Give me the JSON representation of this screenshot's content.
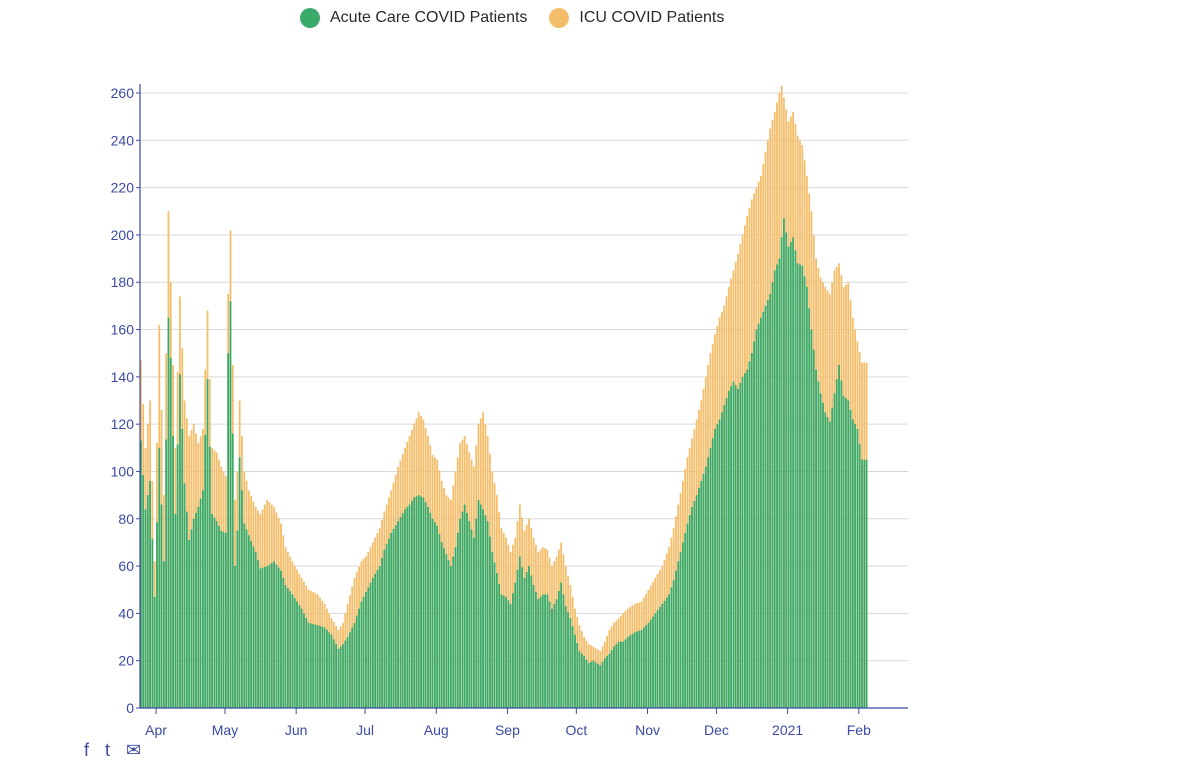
{
  "chart_data": {
    "type": "bar",
    "stacked": true,
    "title": "",
    "xlabel": "",
    "ylabel": "",
    "ylim": [
      0,
      265
    ],
    "yticks": [
      0,
      20,
      40,
      60,
      80,
      100,
      120,
      140,
      160,
      180,
      200,
      220,
      240,
      260
    ],
    "x_tick_labels": [
      {
        "label": "Apr",
        "day": 7
      },
      {
        "label": "May",
        "day": 37
      },
      {
        "label": "Jun",
        "day": 68
      },
      {
        "label": "Jul",
        "day": 98
      },
      {
        "label": "Aug",
        "day": 129
      },
      {
        "label": "Sep",
        "day": 160
      },
      {
        "label": "Oct",
        "day": 190
      },
      {
        "label": "Nov",
        "day": 221
      },
      {
        "label": "Dec",
        "day": 251
      },
      {
        "label": "2021",
        "day": 282
      },
      {
        "label": "Feb",
        "day": 313
      }
    ],
    "total_days": 317,
    "day_index_note": "day 0 = Mar 25, 2020",
    "series": [
      {
        "name": "Acute Care COVID Patients",
        "color": "#3aaa6a",
        "points": [
          [
            0,
            113
          ],
          [
            2,
            84
          ],
          [
            4,
            96
          ],
          [
            6,
            47
          ],
          [
            8,
            110
          ],
          [
            10,
            62
          ],
          [
            12,
            165
          ],
          [
            13,
            148
          ],
          [
            15,
            82
          ],
          [
            17,
            141
          ],
          [
            19,
            95
          ],
          [
            21,
            71
          ],
          [
            23,
            80
          ],
          [
            25,
            85
          ],
          [
            27,
            92
          ],
          [
            29,
            139
          ],
          [
            31,
            82
          ],
          [
            33,
            79
          ],
          [
            35,
            75
          ],
          [
            37,
            74
          ],
          [
            38,
            150
          ],
          [
            39,
            172
          ],
          [
            41,
            60
          ],
          [
            42,
            75
          ],
          [
            43,
            106
          ],
          [
            45,
            78
          ],
          [
            47,
            73
          ],
          [
            50,
            66
          ],
          [
            52,
            59
          ],
          [
            55,
            60
          ],
          [
            58,
            62
          ],
          [
            61,
            58
          ],
          [
            63,
            52
          ],
          [
            66,
            48
          ],
          [
            70,
            42
          ],
          [
            73,
            36
          ],
          [
            77,
            35
          ],
          [
            80,
            34
          ],
          [
            83,
            31
          ],
          [
            86,
            25
          ],
          [
            88,
            27
          ],
          [
            90,
            30
          ],
          [
            93,
            36
          ],
          [
            96,
            45
          ],
          [
            98,
            49
          ],
          [
            101,
            55
          ],
          [
            104,
            60
          ],
          [
            106,
            67
          ],
          [
            109,
            74
          ],
          [
            112,
            79
          ],
          [
            115,
            84
          ],
          [
            117,
            86
          ],
          [
            119,
            89
          ],
          [
            121,
            90
          ],
          [
            123,
            89
          ],
          [
            125,
            85
          ],
          [
            127,
            80
          ],
          [
            129,
            77
          ],
          [
            131,
            70
          ],
          [
            133,
            65
          ],
          [
            135,
            60
          ],
          [
            137,
            68
          ],
          [
            139,
            80
          ],
          [
            141,
            86
          ],
          [
            143,
            79
          ],
          [
            145,
            72
          ],
          [
            147,
            88
          ],
          [
            149,
            84
          ],
          [
            151,
            79
          ],
          [
            153,
            66
          ],
          [
            155,
            57
          ],
          [
            157,
            48
          ],
          [
            159,
            47
          ],
          [
            161,
            44
          ],
          [
            163,
            53
          ],
          [
            165,
            64
          ],
          [
            167,
            55
          ],
          [
            169,
            60
          ],
          [
            171,
            52
          ],
          [
            173,
            46
          ],
          [
            175,
            48
          ],
          [
            177,
            48
          ],
          [
            179,
            42
          ],
          [
            181,
            46
          ],
          [
            183,
            53
          ],
          [
            185,
            43
          ],
          [
            187,
            38
          ],
          [
            189,
            31
          ],
          [
            191,
            24
          ],
          [
            193,
            22
          ],
          [
            195,
            19
          ],
          [
            197,
            20
          ],
          [
            200,
            18
          ],
          [
            202,
            21
          ],
          [
            204,
            23
          ],
          [
            206,
            26
          ],
          [
            208,
            28
          ],
          [
            210,
            28
          ],
          [
            212,
            30
          ],
          [
            215,
            32
          ],
          [
            218,
            33
          ],
          [
            221,
            36
          ],
          [
            224,
            40
          ],
          [
            227,
            44
          ],
          [
            230,
            48
          ],
          [
            232,
            54
          ],
          [
            234,
            62
          ],
          [
            236,
            70
          ],
          [
            238,
            78
          ],
          [
            240,
            85
          ],
          [
            242,
            90
          ],
          [
            244,
            96
          ],
          [
            246,
            102
          ],
          [
            248,
            110
          ],
          [
            250,
            118
          ],
          [
            252,
            122
          ],
          [
            254,
            128
          ],
          [
            256,
            134
          ],
          [
            258,
            138
          ],
          [
            260,
            135
          ],
          [
            262,
            140
          ],
          [
            264,
            143
          ],
          [
            266,
            150
          ],
          [
            268,
            160
          ],
          [
            270,
            165
          ],
          [
            272,
            170
          ],
          [
            274,
            175
          ],
          [
            276,
            185
          ],
          [
            278,
            190
          ],
          [
            279,
            199
          ],
          [
            280,
            207
          ],
          [
            282,
            195
          ],
          [
            284,
            199
          ],
          [
            286,
            188
          ],
          [
            288,
            187
          ],
          [
            290,
            178
          ],
          [
            292,
            160
          ],
          [
            294,
            143
          ],
          [
            296,
            133
          ],
          [
            298,
            125
          ],
          [
            300,
            121
          ],
          [
            302,
            133
          ],
          [
            304,
            145
          ],
          [
            306,
            132
          ],
          [
            308,
            130
          ],
          [
            310,
            122
          ],
          [
            312,
            118
          ],
          [
            314,
            105
          ]
        ]
      },
      {
        "name": "ICU COVID Patients",
        "color": "#f4bd6a",
        "points": [
          [
            0,
            147
          ],
          [
            2,
            110
          ],
          [
            4,
            130
          ],
          [
            6,
            62
          ],
          [
            8,
            162
          ],
          [
            10,
            90
          ],
          [
            12,
            210
          ],
          [
            13,
            180
          ],
          [
            15,
            110
          ],
          [
            17,
            174
          ],
          [
            19,
            130
          ],
          [
            21,
            115
          ],
          [
            23,
            120
          ],
          [
            25,
            112
          ],
          [
            27,
            118
          ],
          [
            29,
            168
          ],
          [
            31,
            110
          ],
          [
            33,
            108
          ],
          [
            35,
            102
          ],
          [
            37,
            98
          ],
          [
            38,
            175
          ],
          [
            39,
            202
          ],
          [
            41,
            88
          ],
          [
            42,
            100
          ],
          [
            43,
            130
          ],
          [
            45,
            100
          ],
          [
            47,
            92
          ],
          [
            50,
            85
          ],
          [
            52,
            82
          ],
          [
            55,
            88
          ],
          [
            58,
            85
          ],
          [
            61,
            78
          ],
          [
            63,
            68
          ],
          [
            66,
            62
          ],
          [
            70,
            55
          ],
          [
            73,
            50
          ],
          [
            77,
            48
          ],
          [
            80,
            44
          ],
          [
            83,
            38
          ],
          [
            86,
            33
          ],
          [
            88,
            36
          ],
          [
            90,
            44
          ],
          [
            93,
            55
          ],
          [
            96,
            62
          ],
          [
            98,
            64
          ],
          [
            101,
            70
          ],
          [
            104,
            76
          ],
          [
            106,
            83
          ],
          [
            109,
            92
          ],
          [
            112,
            102
          ],
          [
            115,
            110
          ],
          [
            117,
            115
          ],
          [
            119,
            120
          ],
          [
            121,
            125
          ],
          [
            123,
            122
          ],
          [
            125,
            115
          ],
          [
            127,
            107
          ],
          [
            129,
            105
          ],
          [
            131,
            96
          ],
          [
            133,
            90
          ],
          [
            135,
            88
          ],
          [
            137,
            100
          ],
          [
            139,
            112
          ],
          [
            141,
            115
          ],
          [
            143,
            108
          ],
          [
            145,
            102
          ],
          [
            147,
            120
          ],
          [
            149,
            125
          ],
          [
            151,
            115
          ],
          [
            153,
            100
          ],
          [
            155,
            90
          ],
          [
            157,
            76
          ],
          [
            159,
            72
          ],
          [
            161,
            66
          ],
          [
            163,
            72
          ],
          [
            165,
            86
          ],
          [
            167,
            75
          ],
          [
            169,
            80
          ],
          [
            171,
            72
          ],
          [
            173,
            66
          ],
          [
            175,
            68
          ],
          [
            177,
            67
          ],
          [
            179,
            60
          ],
          [
            181,
            64
          ],
          [
            183,
            70
          ],
          [
            185,
            60
          ],
          [
            187,
            52
          ],
          [
            189,
            42
          ],
          [
            191,
            35
          ],
          [
            193,
            30
          ],
          [
            195,
            27
          ],
          [
            197,
            26
          ],
          [
            200,
            24
          ],
          [
            202,
            28
          ],
          [
            204,
            33
          ],
          [
            206,
            36
          ],
          [
            208,
            38
          ],
          [
            210,
            40
          ],
          [
            212,
            42
          ],
          [
            215,
            44
          ],
          [
            218,
            45
          ],
          [
            221,
            50
          ],
          [
            224,
            55
          ],
          [
            227,
            60
          ],
          [
            230,
            68
          ],
          [
            232,
            76
          ],
          [
            234,
            86
          ],
          [
            236,
            96
          ],
          [
            238,
            106
          ],
          [
            240,
            114
          ],
          [
            242,
            122
          ],
          [
            244,
            130
          ],
          [
            246,
            140
          ],
          [
            248,
            150
          ],
          [
            250,
            158
          ],
          [
            252,
            165
          ],
          [
            254,
            170
          ],
          [
            256,
            178
          ],
          [
            258,
            185
          ],
          [
            260,
            192
          ],
          [
            262,
            200
          ],
          [
            264,
            208
          ],
          [
            266,
            215
          ],
          [
            268,
            220
          ],
          [
            270,
            225
          ],
          [
            272,
            235
          ],
          [
            274,
            245
          ],
          [
            276,
            252
          ],
          [
            278,
            260
          ],
          [
            279,
            263
          ],
          [
            280,
            258
          ],
          [
            282,
            248
          ],
          [
            284,
            252
          ],
          [
            286,
            242
          ],
          [
            288,
            238
          ],
          [
            290,
            225
          ],
          [
            292,
            210
          ],
          [
            294,
            190
          ],
          [
            296,
            182
          ],
          [
            298,
            178
          ],
          [
            300,
            175
          ],
          [
            302,
            185
          ],
          [
            304,
            188
          ],
          [
            306,
            178
          ],
          [
            308,
            180
          ],
          [
            310,
            165
          ],
          [
            312,
            155
          ],
          [
            314,
            146
          ]
        ]
      }
    ]
  },
  "share": {
    "facebook_glyph": "f",
    "twitter_glyph": "t",
    "email_glyph": "✉"
  }
}
